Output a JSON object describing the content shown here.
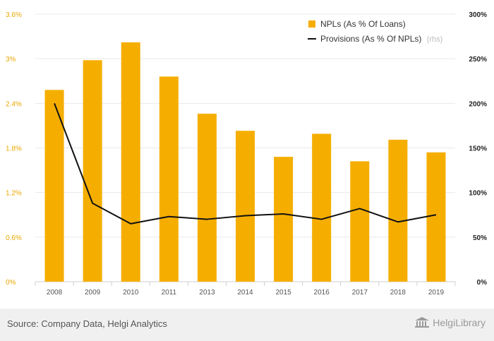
{
  "chart_data": {
    "type": "bar",
    "categories": [
      "2008",
      "2009",
      "2010",
      "2011",
      "2013",
      "2014",
      "2015",
      "2016",
      "2017",
      "2018",
      "2019"
    ],
    "series": [
      {
        "name": "NPLs (As % Of Loans)",
        "type": "bar",
        "axis": "left",
        "unit": "%",
        "values": [
          2.58,
          2.98,
          3.22,
          2.76,
          2.26,
          2.03,
          1.68,
          1.99,
          1.62,
          1.91,
          1.74
        ]
      },
      {
        "name": "Provisions (As % Of NPLs)",
        "name_suffix": "(rhs)",
        "type": "line",
        "axis": "right",
        "unit": "%",
        "values": [
          200,
          88,
          65,
          73,
          70,
          74,
          76,
          70,
          82,
          67,
          75
        ]
      }
    ],
    "y_left": {
      "ylim": [
        0,
        3.6
      ],
      "ticks": [
        "0%",
        "0.6%",
        "1.2%",
        "1.8%",
        "2.4%",
        "3%",
        "3.6%"
      ]
    },
    "y_right": {
      "ylim": [
        0,
        300
      ],
      "ticks": [
        "0%",
        "50%",
        "100%",
        "150%",
        "200%",
        "250%",
        "300%"
      ]
    },
    "grid": true,
    "legend_position": "top-right",
    "colors": {
      "bar": "#f5ae00",
      "line": "#111111"
    }
  },
  "footer": {
    "source": "Source: Company Data, Helgi Analytics",
    "logo_text": "HelgiLibrary"
  }
}
